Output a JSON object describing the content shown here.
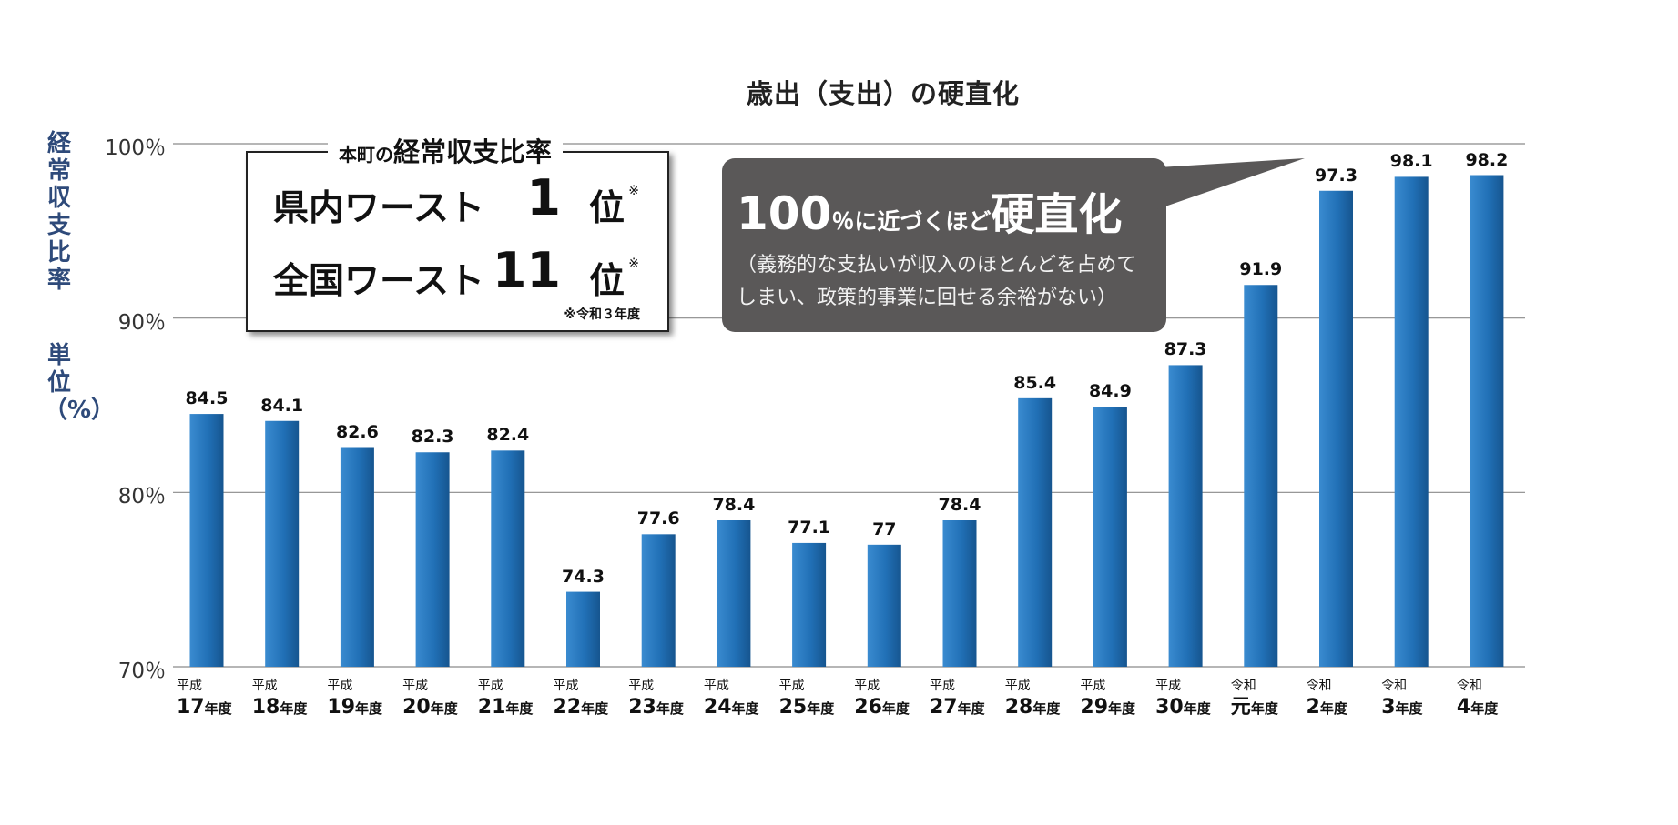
{
  "chart_data": {
    "type": "bar",
    "title": "歳出（支出）の硬直化",
    "ylabel": "経常収支比率",
    "yunit_label": "単位（%）",
    "ylim": [
      70,
      100
    ],
    "yticks": [
      {
        "value": 100,
        "label": "100％"
      },
      {
        "value": 90,
        "label": "90％"
      },
      {
        "value": 80,
        "label": "80％"
      },
      {
        "value": 70,
        "label": "70％"
      }
    ],
    "grid": true,
    "bar_color": "#2170b6",
    "categories": [
      {
        "era": "平成",
        "year": "17",
        "suffix": "年度"
      },
      {
        "era": "平成",
        "year": "18",
        "suffix": "年度"
      },
      {
        "era": "平成",
        "year": "19",
        "suffix": "年度"
      },
      {
        "era": "平成",
        "year": "20",
        "suffix": "年度"
      },
      {
        "era": "平成",
        "year": "21",
        "suffix": "年度"
      },
      {
        "era": "平成",
        "year": "22",
        "suffix": "年度"
      },
      {
        "era": "平成",
        "year": "23",
        "suffix": "年度"
      },
      {
        "era": "平成",
        "year": "24",
        "suffix": "年度"
      },
      {
        "era": "平成",
        "year": "25",
        "suffix": "年度"
      },
      {
        "era": "平成",
        "year": "26",
        "suffix": "年度"
      },
      {
        "era": "平成",
        "year": "27",
        "suffix": "年度"
      },
      {
        "era": "平成",
        "year": "28",
        "suffix": "年度"
      },
      {
        "era": "平成",
        "year": "29",
        "suffix": "年度"
      },
      {
        "era": "平成",
        "year": "30",
        "suffix": "年度"
      },
      {
        "era": "令和",
        "year": "元",
        "suffix": "年度"
      },
      {
        "era": "令和",
        "year": "2",
        "suffix": "年度"
      },
      {
        "era": "令和",
        "year": "3",
        "suffix": "年度"
      },
      {
        "era": "令和",
        "year": "4",
        "suffix": "年度"
      }
    ],
    "values": [
      84.5,
      84.1,
      82.6,
      82.3,
      82.4,
      74.3,
      77.6,
      78.4,
      77.1,
      77,
      78.4,
      85.4,
      84.9,
      87.3,
      91.9,
      97.3,
      98.1,
      98.2
    ]
  },
  "ratio_box": {
    "title_small": "本町の",
    "title_big": "経常収支比率",
    "pref_label": "県内ワースト",
    "pref_rank": "1",
    "national_label": "全国ワースト",
    "national_rank": "11",
    "rank_unit": "位",
    "mark": "※",
    "footnote": "※令和３年度"
  },
  "callout": {
    "num": "100",
    "mid": "％に近づくほど",
    "strong": "硬直化",
    "sub": "（義務的な支払いが収入のほとんどを占めてしまい、政策的事業に回せる余裕がない）",
    "bg_color": "#5a5858"
  }
}
